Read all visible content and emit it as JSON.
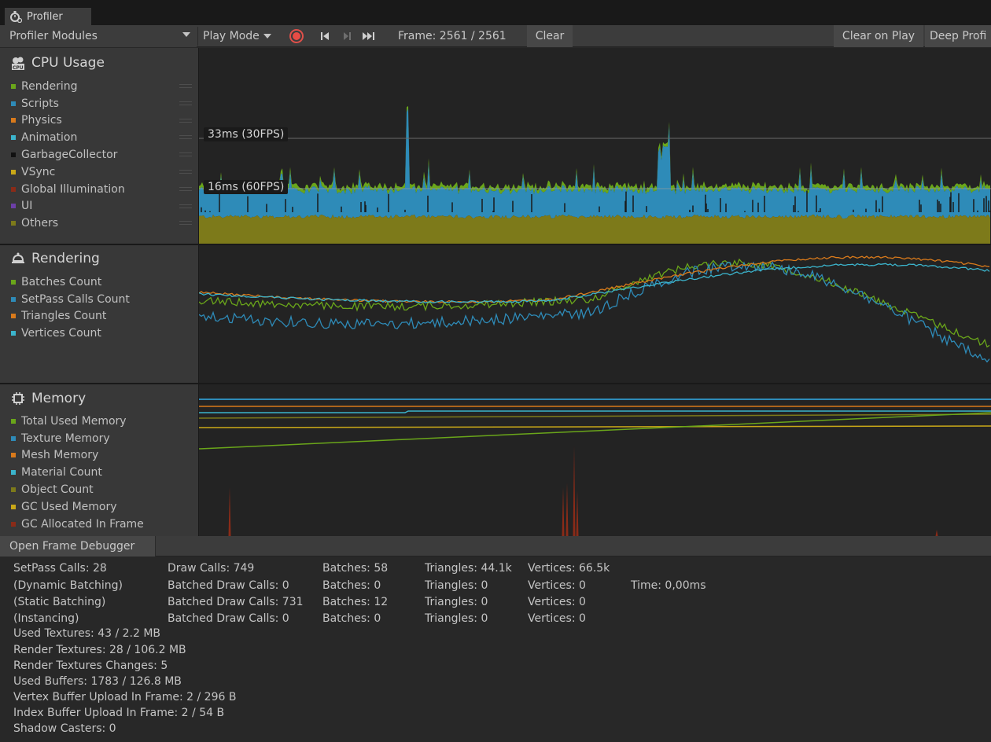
{
  "window": {
    "tab_title": "Profiler",
    "tab_icon": "profiler-stopwatch-icon"
  },
  "toolbar": {
    "modules_dropdown": "Profiler Modules",
    "play_mode": "Play Mode",
    "frame_label": "Frame: 2561 / 2561",
    "clear": "Clear",
    "clear_on_play": "Clear on Play",
    "deep_profile": "Deep Profi"
  },
  "modules": {
    "cpu": {
      "title": "CPU Usage",
      "icon": "cpu-icon",
      "fps_33": "33ms (30FPS)",
      "fps_16": "16ms (60FPS)",
      "legend": [
        {
          "label": "Rendering",
          "color": "#6aa61a"
        },
        {
          "label": "Scripts",
          "color": "#2e8bb8"
        },
        {
          "label": "Physics",
          "color": "#d97a1b"
        },
        {
          "label": "Animation",
          "color": "#3bb4cc"
        },
        {
          "label": "GarbageCollector",
          "color": "#111111"
        },
        {
          "label": "VSync",
          "color": "#c9a818"
        },
        {
          "label": "Global Illumination",
          "color": "#8a2b18"
        },
        {
          "label": "UI",
          "color": "#6d3fa8"
        },
        {
          "label": "Others",
          "color": "#7d7a1a"
        }
      ]
    },
    "rendering": {
      "title": "Rendering",
      "icon": "rendering-teapot-icon",
      "legend": [
        {
          "label": "Batches Count",
          "color": "#6aa61a"
        },
        {
          "label": "SetPass Calls Count",
          "color": "#2e8bb8"
        },
        {
          "label": "Triangles Count",
          "color": "#d97a1b"
        },
        {
          "label": "Vertices Count",
          "color": "#3bb4cc"
        }
      ]
    },
    "memory": {
      "title": "Memory",
      "icon": "memory-chip-icon",
      "legend": [
        {
          "label": "Total Used Memory",
          "color": "#6aa61a"
        },
        {
          "label": "Texture Memory",
          "color": "#2e8bb8"
        },
        {
          "label": "Mesh Memory",
          "color": "#d97a1b"
        },
        {
          "label": "Material Count",
          "color": "#3bb4cc"
        },
        {
          "label": "Object Count",
          "color": "#7d7a1a"
        },
        {
          "label": "GC Used Memory",
          "color": "#c9a818"
        },
        {
          "label": "GC Allocated In Frame",
          "color": "#8a2b18"
        }
      ]
    }
  },
  "details": {
    "button": "Open Frame Debugger",
    "row0": [
      "SetPass Calls: 28",
      "Draw Calls: 749",
      "Batches: 58",
      "Triangles: 44.1k",
      "Vertices: 66.5k"
    ],
    "row1": [
      "(Dynamic Batching)",
      "Batched Draw Calls: 0",
      "Batches: 0",
      "Triangles: 0",
      "Vertices: 0",
      "Time: 0,00ms"
    ],
    "row2": [
      "(Static Batching)",
      "Batched Draw Calls: 731",
      "Batches: 12",
      "Triangles: 0",
      "Vertices: 0"
    ],
    "row3": [
      "(Instancing)",
      "Batched Draw Calls: 0",
      "Batches: 0",
      "Triangles: 0",
      "Vertices: 0"
    ],
    "lines": [
      "Used Textures: 43 / 2.2 MB",
      "Render Textures: 28 / 106.2 MB",
      "Render Textures Changes: 5",
      "Used Buffers: 1783 / 126.8 MB",
      "Vertex Buffer Upload In Frame: 2 / 296 B",
      "Index Buffer Upload In Frame: 2 / 54 B",
      "Shadow Casters: 0"
    ]
  }
}
